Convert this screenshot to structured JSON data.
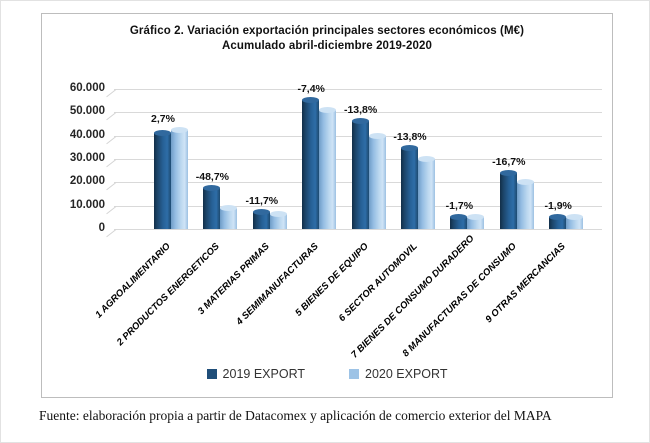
{
  "header": {
    "title_line1": "Gráfico 2. Variación exportación principales sectores económicos (M€)",
    "title_line2": "Acumulado abril-diciembre 2019-2020"
  },
  "footer": {
    "source_note": "Fuente: elaboración propia a partir de Datacomex y aplicación de comercio exterior del MAPA"
  },
  "chart_data": {
    "type": "bar",
    "title": "Gráfico 2. Variación exportación principales sectores económicos (M€)",
    "subtitle": "Acumulado abril-diciembre 2019-2020",
    "unit": "M€",
    "categories": [
      "1 AGROALIMENTARIO",
      "2 PRODUCTOS ENERGETICOS",
      "3 MATERIAS PRIMAS",
      "4 SEMIMANUFACTURAS",
      "5 BIENES DE EQUIPO",
      "6 SECTOR AUTOMOVIL",
      "7 BIENES DE CONSUMO DURADERO",
      "8 MANUFACTURAS DE CONSUMO",
      "9 OTRAS MERCANCIAS"
    ],
    "series": [
      {
        "name": "2019 EXPORT",
        "color": "#1F4E79",
        "values": [
          41300,
          17500,
          7400,
          55300,
          46200,
          34900,
          5300,
          24000,
          5100
        ]
      },
      {
        "name": "2020 EXPORT",
        "color": "#9DC3E6",
        "values": [
          42400,
          9000,
          6500,
          51200,
          39800,
          30100,
          5200,
          20000,
          5000
        ]
      }
    ],
    "variation_labels": [
      "2,7%",
      "-48,7%",
      "-11,7%",
      "-7,4%",
      "-13,8%",
      "-13,8%",
      "-1,7%",
      "-16,7%",
      "-1,9%"
    ],
    "y_ticks": [
      {
        "value": 0,
        "label": "0"
      },
      {
        "value": 10000,
        "label": "10.000"
      },
      {
        "value": 20000,
        "label": "20.000"
      },
      {
        "value": 30000,
        "label": "30.000"
      },
      {
        "value": 40000,
        "label": "40.000"
      },
      {
        "value": 50000,
        "label": "50.000"
      },
      {
        "value": 60000,
        "label": "60.000"
      }
    ],
    "ylim": [
      0,
      60000
    ],
    "grid": true,
    "legend_position": "bottom",
    "colors": {
      "grid": "#d9d9d9",
      "box_border": "#bdbdbd"
    }
  }
}
